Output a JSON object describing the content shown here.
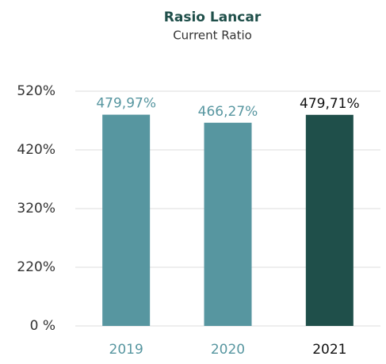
{
  "chart_data": {
    "type": "bar",
    "title": "Rasio Lancar",
    "subtitle": "Current Ratio",
    "categories": [
      "2019",
      "2020",
      "2021"
    ],
    "values": [
      479.97,
      466.27,
      479.71
    ],
    "value_labels": [
      "479,97%",
      "466,27%",
      "479,71%"
    ],
    "colors": [
      "#5796a0",
      "#5796a0",
      "#1f4f4a"
    ],
    "label_colors": [
      "#5796a0",
      "#5796a0",
      "#111111"
    ],
    "ylim": [
      0,
      520
    ],
    "yticks": [
      {
        "value": 0,
        "label": "0 %"
      },
      {
        "value": 220,
        "label": "220%"
      },
      {
        "value": 320,
        "label": "320%"
      },
      {
        "value": 420,
        "label": "420%"
      },
      {
        "value": 520,
        "label": "520%"
      }
    ],
    "grid": true
  }
}
